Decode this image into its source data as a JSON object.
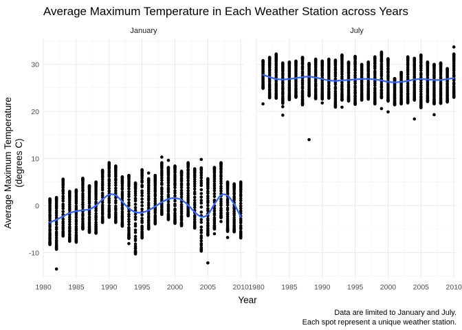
{
  "chart_data": {
    "type": "scatter",
    "title": "Average Maximum Temperature in Each Weather Station across Years",
    "xlabel": "Year",
    "ylabel_lines": [
      "Average Maximum Temperature",
      "(degrees C)"
    ],
    "caption_lines": [
      "Data are limited to January and July.",
      "Each spot represent a unique weather station."
    ],
    "xlim": [
      1980,
      2010.5
    ],
    "ylim": [
      -15.5,
      35.5
    ],
    "x_ticks": [
      1980,
      1985,
      1990,
      1995,
      2000,
      2005,
      2010
    ],
    "y_ticks": [
      -10,
      0,
      10,
      20,
      30
    ],
    "grid": true,
    "point_color": "#000000",
    "smooth_color": "#3366FF",
    "panels": [
      {
        "name": "January",
        "ranges": [
          [
            1981,
            -8.3,
            1.4
          ],
          [
            1982,
            -9.3,
            1.7
          ],
          [
            1983,
            -6.5,
            5.6
          ],
          [
            1984,
            -7.6,
            3.0
          ],
          [
            1985,
            -7.8,
            3.3
          ],
          [
            1986,
            -5.0,
            5.8
          ],
          [
            1987,
            -5.7,
            4.2
          ],
          [
            1988,
            -5.9,
            5.0
          ],
          [
            1989,
            -3.6,
            7.5
          ],
          [
            1990,
            -2.5,
            9.1
          ],
          [
            1991,
            -3.6,
            8.4
          ],
          [
            1992,
            -4.4,
            6.1
          ],
          [
            1993,
            -7.0,
            6.4
          ],
          [
            1994,
            -10.3,
            4.8
          ],
          [
            1995,
            -6.9,
            7.6
          ],
          [
            1996,
            -5.0,
            5.7
          ],
          [
            1997,
            -3.9,
            6.4
          ],
          [
            1998,
            -1.9,
            9.1
          ],
          [
            1999,
            -3.0,
            8.1
          ],
          [
            2000,
            -3.8,
            8.4
          ],
          [
            2001,
            -4.3,
            7.3
          ],
          [
            2002,
            -2.2,
            9.1
          ],
          [
            2003,
            -4.8,
            7.8
          ],
          [
            2004,
            -9.7,
            8.0
          ],
          [
            2005,
            -6.3,
            5.7
          ],
          [
            2006,
            -5.0,
            8.1
          ],
          [
            2007,
            -2.6,
            9.1
          ],
          [
            2008,
            -5.5,
            5.0
          ],
          [
            2009,
            -5.6,
            4.6
          ],
          [
            2010,
            -6.8,
            5.0
          ]
        ],
        "outliers": [
          [
            1982,
            -13.5
          ],
          [
            1998,
            10.3
          ],
          [
            1999,
            9.6
          ],
          [
            1996,
            6.9
          ],
          [
            2004,
            9.8
          ],
          [
            2005,
            -12.2
          ],
          [
            1993,
            -8.1
          ],
          [
            2008,
            -6.8
          ],
          [
            2010,
            -6.9
          ],
          [
            2006,
            -6.0
          ],
          [
            2007,
            -3.4
          ]
        ],
        "smooth": [
          [
            1981,
            -3.6
          ],
          [
            1982,
            -3.0
          ],
          [
            1983,
            -2.3
          ],
          [
            1984,
            -1.6
          ],
          [
            1985,
            -1.2
          ],
          [
            1986,
            -1.0
          ],
          [
            1987,
            -0.8
          ],
          [
            1988,
            0.0
          ],
          [
            1989,
            1.3
          ],
          [
            1990,
            2.3
          ],
          [
            1991,
            2.2
          ],
          [
            1992,
            0.8
          ],
          [
            1993,
            -0.6
          ],
          [
            1994,
            -1.4
          ],
          [
            1995,
            -1.5
          ],
          [
            1996,
            -1.0
          ],
          [
            1997,
            -0.2
          ],
          [
            1998,
            0.7
          ],
          [
            1999,
            1.4
          ],
          [
            2000,
            1.6
          ],
          [
            2001,
            1.2
          ],
          [
            2002,
            0.1
          ],
          [
            2003,
            -1.4
          ],
          [
            2004,
            -2.4
          ],
          [
            2005,
            -1.9
          ],
          [
            2006,
            0.3
          ],
          [
            2007,
            2.2
          ],
          [
            2008,
            2.1
          ],
          [
            2009,
            0.3
          ],
          [
            2010,
            -2.4
          ]
        ]
      },
      {
        "name": "July",
        "ranges": [
          [
            1981,
            24.9,
            30.8
          ],
          [
            1982,
            22.9,
            31.5
          ],
          [
            1983,
            22.8,
            32.2
          ],
          [
            1984,
            21.7,
            30.3
          ],
          [
            1985,
            22.5,
            30.5
          ],
          [
            1986,
            23.0,
            30.7
          ],
          [
            1987,
            21.4,
            31.5
          ],
          [
            1988,
            23.3,
            30.2
          ],
          [
            1989,
            22.7,
            31.1
          ],
          [
            1990,
            22.6,
            30.7
          ],
          [
            1991,
            22.8,
            31.1
          ],
          [
            1992,
            20.9,
            30.9
          ],
          [
            1993,
            22.4,
            32.0
          ],
          [
            1994,
            22.2,
            30.5
          ],
          [
            1995,
            21.5,
            31.7
          ],
          [
            1996,
            22.4,
            30.0
          ],
          [
            1997,
            22.6,
            30.5
          ],
          [
            1998,
            21.6,
            31.6
          ],
          [
            1999,
            22.9,
            32.6
          ],
          [
            2000,
            22.2,
            31.2
          ],
          [
            2001,
            21.4,
            27.0
          ],
          [
            2002,
            21.6,
            28.3
          ],
          [
            2003,
            21.8,
            31.6
          ],
          [
            2004,
            22.4,
            31.3
          ],
          [
            2005,
            20.8,
            32.0
          ],
          [
            2006,
            22.1,
            30.5
          ],
          [
            2007,
            21.6,
            30.0
          ],
          [
            2008,
            21.7,
            30.3
          ],
          [
            2009,
            22.0,
            29.1
          ],
          [
            2010,
            23.0,
            32.2
          ]
        ],
        "outliers": [
          [
            1981,
            21.6
          ],
          [
            1984,
            19.2
          ],
          [
            1984,
            21.0
          ],
          [
            1988,
            14.0
          ],
          [
            1990,
            21.8
          ],
          [
            2000,
            19.9
          ],
          [
            2004,
            18.4
          ],
          [
            2007,
            19.3
          ],
          [
            2010,
            33.7
          ],
          [
            1999,
            20.6
          ],
          [
            1993,
            20.9
          ]
        ],
        "smooth": [
          [
            1981,
            27.8
          ],
          [
            1982,
            27.3
          ],
          [
            1983,
            26.9
          ],
          [
            1984,
            26.8
          ],
          [
            1985,
            26.9
          ],
          [
            1986,
            27.1
          ],
          [
            1987,
            27.3
          ],
          [
            1988,
            27.4
          ],
          [
            1989,
            27.2
          ],
          [
            1990,
            26.9
          ],
          [
            1991,
            26.6
          ],
          [
            1992,
            26.5
          ],
          [
            1993,
            26.6
          ],
          [
            1994,
            26.7
          ],
          [
            1995,
            26.8
          ],
          [
            1996,
            26.9
          ],
          [
            1997,
            26.9
          ],
          [
            1998,
            26.8
          ],
          [
            1999,
            26.6
          ],
          [
            2000,
            26.3
          ],
          [
            2001,
            26.2
          ],
          [
            2002,
            26.3
          ],
          [
            2003,
            26.5
          ],
          [
            2004,
            26.8
          ],
          [
            2005,
            26.9
          ],
          [
            2006,
            26.8
          ],
          [
            2007,
            26.7
          ],
          [
            2008,
            26.7
          ],
          [
            2009,
            26.9
          ],
          [
            2010,
            27.1
          ]
        ]
      }
    ]
  }
}
